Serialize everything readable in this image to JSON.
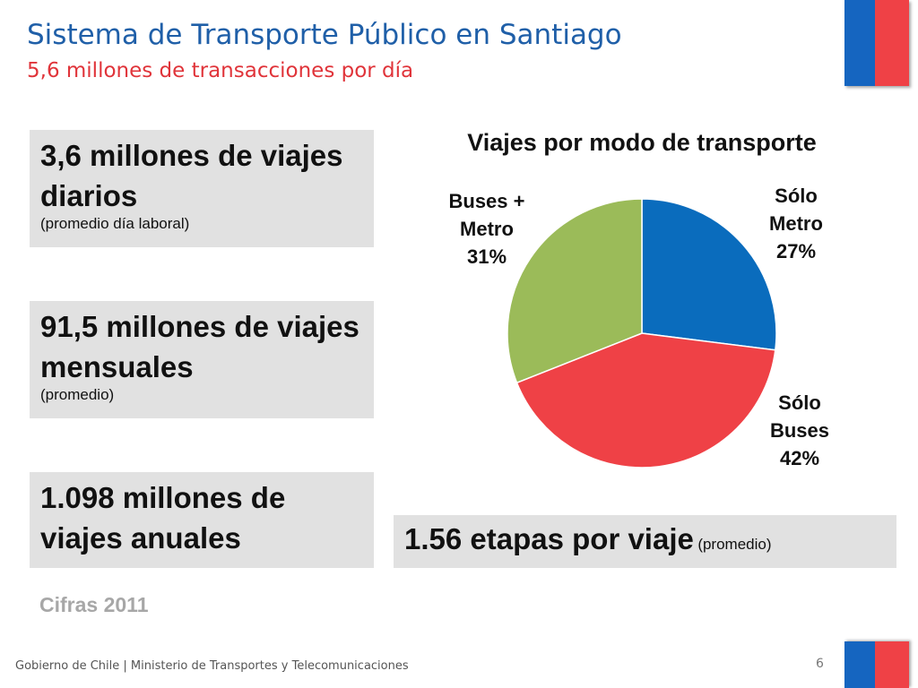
{
  "header": {
    "title": "Sistema de Transporte Público en Santiago",
    "subtitle": "5,6 millones de transacciones por día"
  },
  "stats": [
    {
      "main": "3,6 millones de viajes diarios",
      "note": "(promedio día laboral)"
    },
    {
      "main": "91,5 millones de viajes mensuales",
      "note": "(promedio)"
    },
    {
      "main": "1.098 millones de viajes anuales"
    }
  ],
  "footnote": "Cifras 2011",
  "etapas": {
    "main": "1.56 etapas por viaje",
    "note": "(promedio)"
  },
  "footer": {
    "text": "Gobierno de Chile | Ministerio de Transportes y Telecomunicaciones",
    "page_number": "6"
  },
  "colors": {
    "title": "#1f5fa8",
    "subtitle": "#e0343a",
    "flag_blue": "#1565c0",
    "flag_red": "#ef4146"
  },
  "chart_data": {
    "type": "pie",
    "title": "Viajes por modo de transporte",
    "legend": "none",
    "slices": [
      {
        "label_lines": [
          "Sólo",
          "Metro",
          "27%"
        ],
        "value": 27,
        "color": "#0a6cbd"
      },
      {
        "label_lines": [
          "Sólo",
          "Buses",
          "42%"
        ],
        "value": 42,
        "color": "#ef4146"
      },
      {
        "label_lines": [
          "Buses +",
          "Metro",
          "31%"
        ],
        "value": 31,
        "color": "#9bbb59"
      }
    ]
  }
}
